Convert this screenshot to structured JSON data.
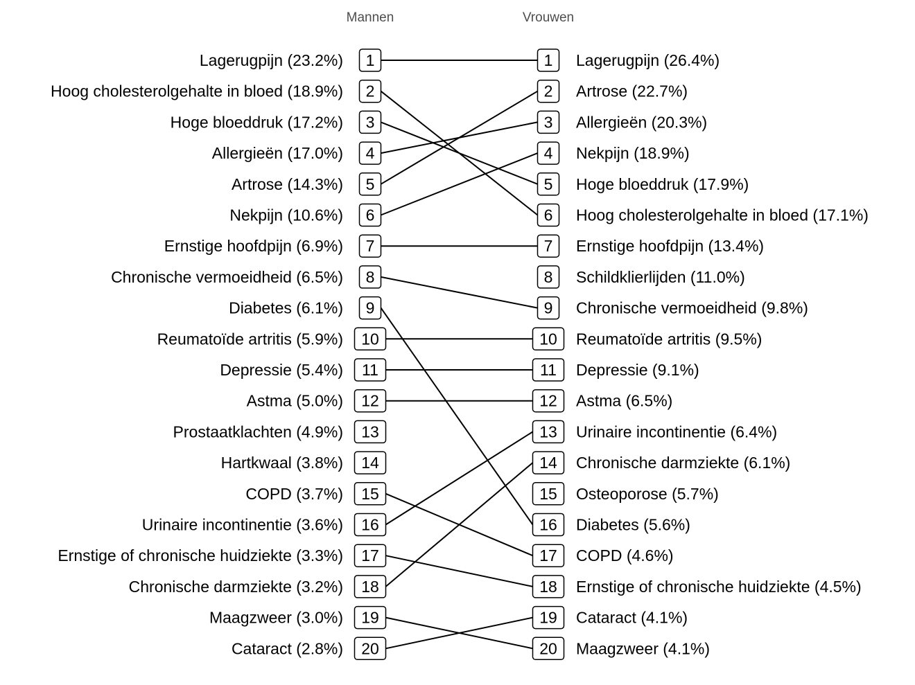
{
  "chart_data": {
    "type": "slope",
    "groups": [
      "Mannen",
      "Vrouwen"
    ],
    "left": [
      {
        "rank": "1",
        "label": "Lagerugpijn (23.2%)",
        "condition": "Lagerugpijn",
        "value": 23.2
      },
      {
        "rank": "2",
        "label": "Hoog cholesterolgehalte in bloed (18.9%)",
        "condition": "Hoog cholesterolgehalte in bloed",
        "value": 18.9
      },
      {
        "rank": "3",
        "label": "Hoge bloeddruk (17.2%)",
        "condition": "Hoge bloeddruk",
        "value": 17.2
      },
      {
        "rank": "4",
        "label": "Allergieën (17.0%)",
        "condition": "Allergieën",
        "value": 17.0
      },
      {
        "rank": "5",
        "label": "Artrose (14.3%)",
        "condition": "Artrose",
        "value": 14.3
      },
      {
        "rank": "6",
        "label": "Nekpijn (10.6%)",
        "condition": "Nekpijn",
        "value": 10.6
      },
      {
        "rank": "7",
        "label": "Ernstige hoofdpijn (6.9%)",
        "condition": "Ernstige hoofdpijn",
        "value": 6.9
      },
      {
        "rank": "8",
        "label": "Chronische vermoeidheid (6.5%)",
        "condition": "Chronische vermoeidheid",
        "value": 6.5
      },
      {
        "rank": "9",
        "label": "Diabetes (6.1%)",
        "condition": "Diabetes",
        "value": 6.1
      },
      {
        "rank": "10",
        "label": "Reumatoïde artritis (5.9%)",
        "condition": "Reumatoïde artritis",
        "value": 5.9
      },
      {
        "rank": "11",
        "label": "Depressie (5.4%)",
        "condition": "Depressie",
        "value": 5.4
      },
      {
        "rank": "12",
        "label": "Astma (5.0%)",
        "condition": "Astma",
        "value": 5.0
      },
      {
        "rank": "13",
        "label": "Prostaatklachten (4.9%)",
        "condition": "Prostaatklachten",
        "value": 4.9
      },
      {
        "rank": "14",
        "label": "Hartkwaal (3.8%)",
        "condition": "Hartkwaal",
        "value": 3.8
      },
      {
        "rank": "15",
        "label": "COPD (3.7%)",
        "condition": "COPD",
        "value": 3.7
      },
      {
        "rank": "16",
        "label": "Urinaire incontinentie (3.6%)",
        "condition": "Urinaire incontinentie",
        "value": 3.6
      },
      {
        "rank": "17",
        "label": "Ernstige of chronische huidziekte (3.3%)",
        "condition": "Ernstige of chronische huidziekte",
        "value": 3.3
      },
      {
        "rank": "18",
        "label": "Chronische darmziekte (3.2%)",
        "condition": "Chronische darmziekte",
        "value": 3.2
      },
      {
        "rank": "19",
        "label": "Maagzweer (3.0%)",
        "condition": "Maagzweer",
        "value": 3.0
      },
      {
        "rank": "20",
        "label": "Cataract (2.8%)",
        "condition": "Cataract",
        "value": 2.8
      }
    ],
    "right": [
      {
        "rank": "1",
        "label": "Lagerugpijn (26.4%)",
        "condition": "Lagerugpijn",
        "value": 26.4
      },
      {
        "rank": "2",
        "label": "Artrose (22.7%)",
        "condition": "Artrose",
        "value": 22.7
      },
      {
        "rank": "3",
        "label": "Allergieën (20.3%)",
        "condition": "Allergieën",
        "value": 20.3
      },
      {
        "rank": "4",
        "label": "Nekpijn (18.9%)",
        "condition": "Nekpijn",
        "value": 18.9
      },
      {
        "rank": "5",
        "label": "Hoge bloeddruk (17.9%)",
        "condition": "Hoge bloeddruk",
        "value": 17.9
      },
      {
        "rank": "6",
        "label": "Hoog cholesterolgehalte in bloed (17.1%)",
        "condition": "Hoog cholesterolgehalte in bloed",
        "value": 17.1
      },
      {
        "rank": "7",
        "label": "Ernstige hoofdpijn (13.4%)",
        "condition": "Ernstige hoofdpijn",
        "value": 13.4
      },
      {
        "rank": "8",
        "label": "Schildklierlijden (11.0%)",
        "condition": "Schildklierlijden",
        "value": 11.0
      },
      {
        "rank": "9",
        "label": "Chronische vermoeidheid (9.8%)",
        "condition": "Chronische vermoeidheid",
        "value": 9.8
      },
      {
        "rank": "10",
        "label": "Reumatoïde artritis (9.5%)",
        "condition": "Reumatoïde artritis",
        "value": 9.5
      },
      {
        "rank": "11",
        "label": "Depressie (9.1%)",
        "condition": "Depressie",
        "value": 9.1
      },
      {
        "rank": "12",
        "label": "Astma (6.5%)",
        "condition": "Astma",
        "value": 6.5
      },
      {
        "rank": "13",
        "label": "Urinaire incontinentie (6.4%)",
        "condition": "Urinaire incontinentie",
        "value": 6.4
      },
      {
        "rank": "14",
        "label": "Chronische darmziekte (6.1%)",
        "condition": "Chronische darmziekte",
        "value": 6.1
      },
      {
        "rank": "15",
        "label": "Osteoporose (5.7%)",
        "condition": "Osteoporose",
        "value": 5.7
      },
      {
        "rank": "16",
        "label": "Diabetes (5.6%)",
        "condition": "Diabetes",
        "value": 5.6
      },
      {
        "rank": "17",
        "label": "COPD (4.6%)",
        "condition": "COPD",
        "value": 4.6
      },
      {
        "rank": "18",
        "label": "Ernstige of chronische huidziekte (4.5%)",
        "condition": "Ernstige of chronische huidziekte",
        "value": 4.5
      },
      {
        "rank": "19",
        "label": "Cataract (4.1%)",
        "condition": "Cataract",
        "value": 4.1
      },
      {
        "rank": "20",
        "label": "Maagzweer (4.1%)",
        "condition": "Maagzweer",
        "value": 4.1
      }
    ],
    "links": [
      [
        1,
        1
      ],
      [
        2,
        6
      ],
      [
        3,
        5
      ],
      [
        4,
        3
      ],
      [
        5,
        2
      ],
      [
        6,
        4
      ],
      [
        7,
        7
      ],
      [
        8,
        9
      ],
      [
        9,
        16
      ],
      [
        10,
        10
      ],
      [
        11,
        11
      ],
      [
        12,
        12
      ],
      [
        15,
        17
      ],
      [
        16,
        13
      ],
      [
        17,
        18
      ],
      [
        18,
        14
      ],
      [
        19,
        20
      ],
      [
        20,
        19
      ]
    ],
    "colors": {
      "line": "#000000",
      "box_stroke": "#000000",
      "title_text": "#4d4d4d",
      "label_text": "#000000"
    }
  }
}
